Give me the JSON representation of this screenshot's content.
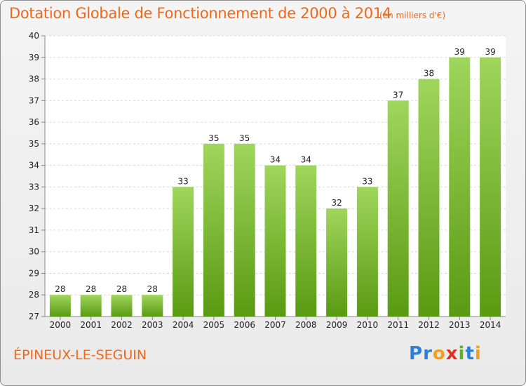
{
  "chart_data": {
    "type": "bar",
    "title": "Dotation Globale de Fonctionnement de 2000 à 2014",
    "subtitle": "(en milliers d'€)",
    "categories": [
      "2000",
      "2001",
      "2002",
      "2003",
      "2004",
      "2005",
      "2006",
      "2007",
      "2008",
      "2009",
      "2010",
      "2011",
      "2012",
      "2013",
      "2014"
    ],
    "values": [
      28,
      28,
      28,
      28,
      33,
      35,
      35,
      34,
      34,
      32,
      33,
      37,
      38,
      39,
      39
    ],
    "data_labels": [
      "28",
      "28",
      "28",
      "28",
      "33",
      "35",
      "35",
      "34",
      "34",
      "32",
      "33",
      "37",
      "38",
      "39",
      "39"
    ],
    "xlabel": "",
    "ylabel": "",
    "ylim": [
      27,
      40
    ],
    "y_ticks": [
      "27",
      "28",
      "29",
      "30",
      "31",
      "32",
      "33",
      "34",
      "35",
      "36",
      "37",
      "38",
      "39",
      "40"
    ],
    "grid": true,
    "bar_color_top": "#9fd65c",
    "bar_color_bottom": "#5a9a12"
  },
  "commune": "ÉPINEUX-LE-SEGUIN",
  "logo": {
    "letters": [
      "P",
      "r",
      "o",
      "x",
      "i",
      "t",
      "i"
    ],
    "colors": [
      "#2f7fd6",
      "#2f7fd6",
      "#f0a020",
      "#e03020",
      "#60b030",
      "#2f7fd6",
      "#f0a020"
    ]
  }
}
